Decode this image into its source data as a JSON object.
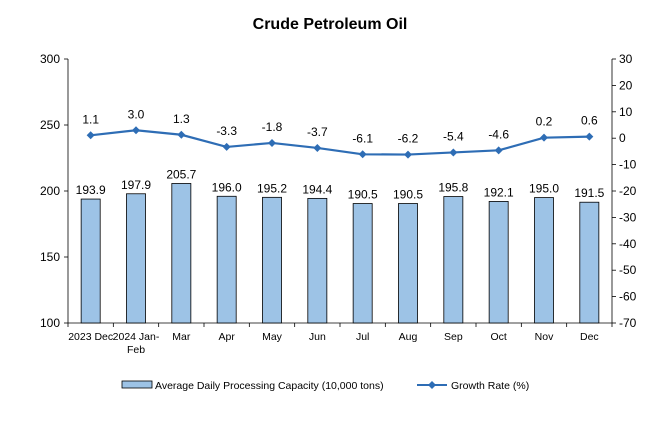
{
  "chart_data": {
    "type": "bar",
    "title": "Crude Petroleum Oil",
    "categories": [
      "2023 Dec",
      "2024 Jan-Feb",
      "Mar",
      "Apr",
      "May",
      "Jun",
      "Jul",
      "Aug",
      "Sep",
      "Oct",
      "Nov",
      "Dec"
    ],
    "series": [
      {
        "name": "Average Daily Processing Capacity (10,000 tons)",
        "type": "bar",
        "axis": "left",
        "values": [
          193.9,
          197.9,
          205.7,
          196.0,
          195.2,
          194.4,
          190.5,
          190.5,
          195.8,
          192.1,
          195.0,
          191.5
        ],
        "labels": [
          "193.9",
          "197.9",
          "205.7",
          "196.0",
          "195.2",
          "194.4",
          "190.5",
          "190.5",
          "195.8",
          "192.1",
          "195.0",
          "191.5"
        ],
        "color": "#9dc3e6",
        "border": "#000000"
      },
      {
        "name": "Growth Rate (%)",
        "type": "line",
        "axis": "right",
        "values": [
          1.1,
          3.0,
          1.3,
          -3.3,
          -1.8,
          -3.7,
          -6.1,
          -6.2,
          -5.4,
          -4.6,
          0.2,
          0.6
        ],
        "labels": [
          "1.1",
          "3.0",
          "1.3",
          "-3.3",
          "-1.8",
          "-3.7",
          "-6.1",
          "-6.2",
          "-5.4",
          "-4.6",
          "0.2",
          "0.6"
        ],
        "color": "#2e6db5"
      }
    ],
    "y_left": {
      "min": 100,
      "max": 300,
      "ticks": [
        "100",
        "150",
        "200",
        "250",
        "300"
      ]
    },
    "y_right": {
      "min": -70,
      "max": 30,
      "ticks": [
        "-70",
        "-60",
        "-50",
        "-40",
        "-30",
        "-20",
        "-10",
        "0",
        "10",
        "20",
        "30"
      ]
    },
    "x_tick_labels": [
      [
        "2023 Dec"
      ],
      [
        "2024 Jan-",
        "Feb"
      ],
      [
        "Mar"
      ],
      [
        "Apr"
      ],
      [
        "May"
      ],
      [
        "Jun"
      ],
      [
        "Jul"
      ],
      [
        "Aug"
      ],
      [
        "Sep"
      ],
      [
        "Oct"
      ],
      [
        "Nov"
      ],
      [
        "Dec"
      ]
    ],
    "grid": false,
    "legend_position": "bottom"
  }
}
